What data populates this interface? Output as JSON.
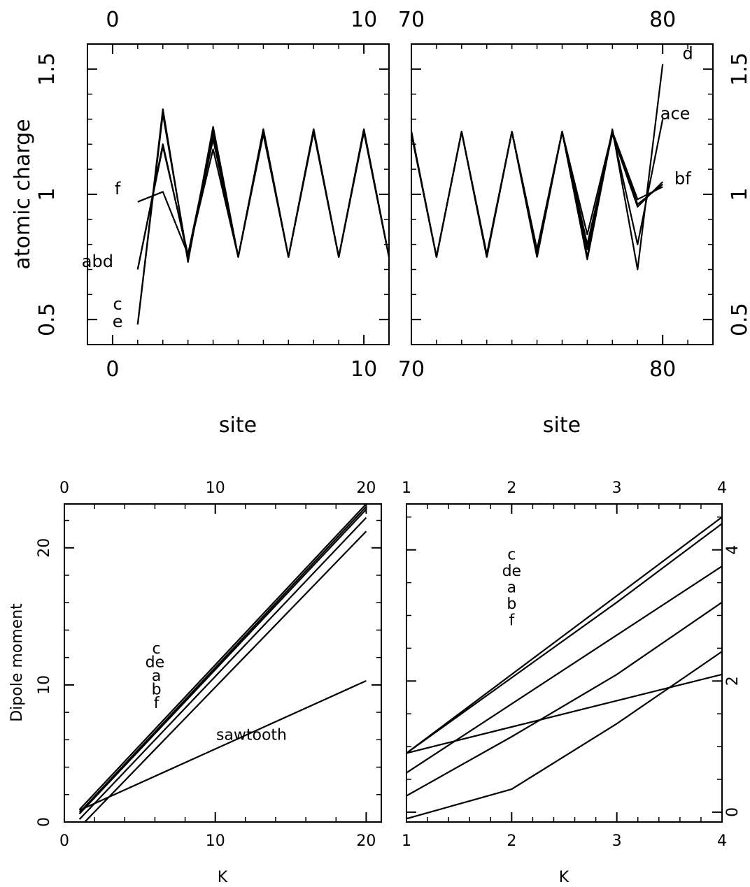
{
  "chart_data": [
    {
      "type": "line",
      "panel": "top-left",
      "xlabel": "site",
      "ylabel": "atomic charge",
      "xlim": [
        -1,
        11
      ],
      "ylim": [
        0.4,
        1.6
      ],
      "xticks": [
        0,
        10
      ],
      "yticks": [
        0.5,
        1,
        1.5
      ],
      "series": [
        {
          "x": [
            1,
            2,
            3,
            4,
            5,
            6,
            7,
            8,
            9,
            10,
            11
          ],
          "y": [
            0.48,
            1.34,
            0.73,
            1.27,
            0.75,
            1.26,
            0.75,
            1.26,
            0.75,
            1.26,
            0.75
          ]
        },
        {
          "x": [
            1,
            2,
            3,
            4,
            5,
            6,
            7,
            8,
            9,
            10,
            11
          ],
          "y": [
            0.48,
            1.32,
            0.74,
            1.26,
            0.75,
            1.26,
            0.75,
            1.26,
            0.75,
            1.26,
            0.75
          ]
        },
        {
          "x": [
            1,
            2,
            3,
            4,
            5,
            6,
            7,
            8,
            9,
            10,
            11
          ],
          "y": [
            0.7,
            1.2,
            0.75,
            1.22,
            0.75,
            1.25,
            0.75,
            1.25,
            0.75,
            1.25,
            0.75
          ]
        },
        {
          "x": [
            1,
            2,
            3,
            4,
            5,
            6,
            7,
            8,
            9,
            10,
            11
          ],
          "y": [
            0.7,
            1.19,
            0.76,
            1.18,
            0.75,
            1.24,
            0.75,
            1.25,
            0.75,
            1.25,
            0.75
          ]
        },
        {
          "x": [
            1,
            2,
            3,
            4,
            5,
            6,
            7,
            8,
            9,
            10,
            11
          ],
          "y": [
            0.97,
            1.01,
            0.76,
            1.24,
            0.75,
            1.25,
            0.75,
            1.25,
            0.75,
            1.25,
            0.75
          ]
        }
      ],
      "annotations": [
        {
          "text": "f",
          "x": 0.2,
          "y": 1.0
        },
        {
          "text": "abd",
          "x": -0.6,
          "y": 0.71
        },
        {
          "text": "c",
          "x": 0.2,
          "y": 0.54
        },
        {
          "text": "e",
          "x": 0.2,
          "y": 0.47
        }
      ]
    },
    {
      "type": "line",
      "panel": "top-right",
      "xlabel": "site",
      "xlim": [
        70,
        82
      ],
      "ylim": [
        0.4,
        1.6
      ],
      "xticks": [
        70,
        80
      ],
      "yticks": [
        0.5,
        1,
        1.5
      ],
      "series": [
        {
          "x": [
            70,
            71,
            72,
            73,
            74,
            75,
            76,
            77,
            78,
            79,
            80
          ],
          "y": [
            1.25,
            0.75,
            1.25,
            0.75,
            1.25,
            0.75,
            1.25,
            0.75,
            1.26,
            0.7,
            1.52
          ]
        },
        {
          "x": [
            70,
            71,
            72,
            73,
            74,
            75,
            76,
            77,
            78,
            79,
            80
          ],
          "y": [
            1.25,
            0.75,
            1.25,
            0.76,
            1.25,
            0.76,
            1.25,
            0.78,
            1.25,
            0.8,
            1.3
          ]
        },
        {
          "x": [
            70,
            71,
            72,
            73,
            74,
            75,
            76,
            77,
            78,
            79,
            80
          ],
          "y": [
            1.25,
            0.75,
            1.25,
            0.76,
            1.25,
            0.77,
            1.25,
            0.8,
            1.24,
            0.95,
            1.05
          ]
        },
        {
          "x": [
            70,
            71,
            72,
            73,
            74,
            75,
            76,
            77,
            78,
            79,
            80
          ],
          "y": [
            1.25,
            0.75,
            1.25,
            0.75,
            1.25,
            0.75,
            1.25,
            0.74,
            1.25,
            0.96,
            1.04
          ]
        },
        {
          "x": [
            70,
            71,
            72,
            73,
            74,
            75,
            76,
            77,
            78,
            79,
            80
          ],
          "y": [
            1.24,
            0.75,
            1.25,
            0.75,
            1.25,
            0.78,
            1.25,
            0.84,
            1.25,
            0.98,
            1.03
          ]
        }
      ],
      "annotations": [
        {
          "text": "d",
          "x": 81.0,
          "y": 1.54
        },
        {
          "text": "ace",
          "x": 80.5,
          "y": 1.3
        },
        {
          "text": "bf",
          "x": 80.8,
          "y": 1.04
        }
      ]
    },
    {
      "type": "line",
      "panel": "bottom-left",
      "xlabel": "K",
      "ylabel": "Dipole moment",
      "xlim": [
        0,
        21
      ],
      "ylim": [
        0,
        23.2
      ],
      "xticks": [
        0,
        10,
        20
      ],
      "yticks": [
        0,
        10,
        20
      ],
      "series": [
        {
          "x": [
            1,
            20
          ],
          "y": [
            0.9,
            23.2
          ]
        },
        {
          "x": [
            1,
            20
          ],
          "y": [
            0.7,
            23.0
          ]
        },
        {
          "x": [
            1,
            20
          ],
          "y": [
            0.6,
            22.8
          ]
        },
        {
          "x": [
            1,
            20
          ],
          "y": [
            0.2,
            22.2
          ]
        },
        {
          "x": [
            1,
            20
          ],
          "y": [
            -0.4,
            21.2
          ]
        },
        {
          "x": [
            1,
            20
          ],
          "y": [
            0.85,
            10.3
          ]
        }
      ],
      "annotations": [
        {
          "text": "c",
          "x": 6.1,
          "y": 12.3
        },
        {
          "text": "de",
          "x": 6.0,
          "y": 11.3
        },
        {
          "text": "a",
          "x": 6.1,
          "y": 10.3
        },
        {
          "text": "b",
          "x": 6.1,
          "y": 9.3
        },
        {
          "text": "f",
          "x": 6.1,
          "y": 8.3
        },
        {
          "text": "sawtooth",
          "x": 12.4,
          "y": 6.0
        }
      ]
    },
    {
      "type": "line",
      "panel": "bottom-right",
      "xlabel": "K",
      "xlim": [
        1,
        4
      ],
      "ylim": [
        -0.15,
        4.7
      ],
      "xticks": [
        1,
        2,
        3,
        4
      ],
      "yticks": [
        0,
        2,
        4
      ],
      "series": [
        {
          "x": [
            1,
            2,
            3,
            4
          ],
          "y": [
            0.9,
            2.1,
            3.3,
            4.5
          ]
        },
        {
          "x": [
            1,
            2,
            3,
            4
          ],
          "y": [
            0.9,
            2.05,
            3.2,
            4.4
          ]
        },
        {
          "x": [
            1,
            2,
            3,
            4
          ],
          "y": [
            0.6,
            1.65,
            2.7,
            3.75
          ]
        },
        {
          "x": [
            1,
            2,
            3,
            4
          ],
          "y": [
            0.25,
            1.15,
            2.1,
            3.2
          ]
        },
        {
          "x": [
            1,
            2,
            3,
            4
          ],
          "y": [
            -0.1,
            0.35,
            1.35,
            2.45
          ]
        },
        {
          "x": [
            1,
            2,
            3,
            4
          ],
          "y": [
            0.9,
            1.3,
            1.7,
            2.1
          ]
        }
      ],
      "annotations": [
        {
          "text": "c",
          "x": 2.0,
          "y": 3.85
        },
        {
          "text": "de",
          "x": 2.0,
          "y": 3.6
        },
        {
          "text": "a",
          "x": 2.0,
          "y": 3.35
        },
        {
          "text": "b",
          "x": 2.0,
          "y": 3.1
        },
        {
          "text": "f",
          "x": 2.0,
          "y": 2.85
        }
      ]
    }
  ]
}
